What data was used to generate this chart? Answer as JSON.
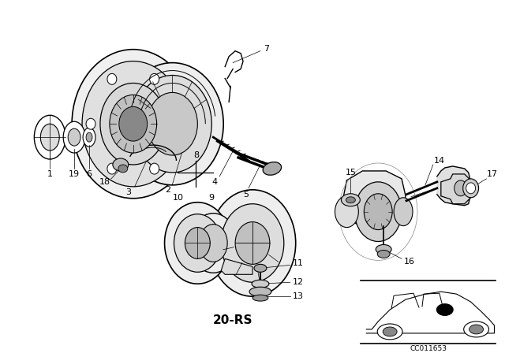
{
  "bg_color": "#ffffff",
  "line_color": "#000000",
  "part_code": "20-RS",
  "diagram_code": "CC011653",
  "label_fs": 8,
  "small_label_fs": 7
}
